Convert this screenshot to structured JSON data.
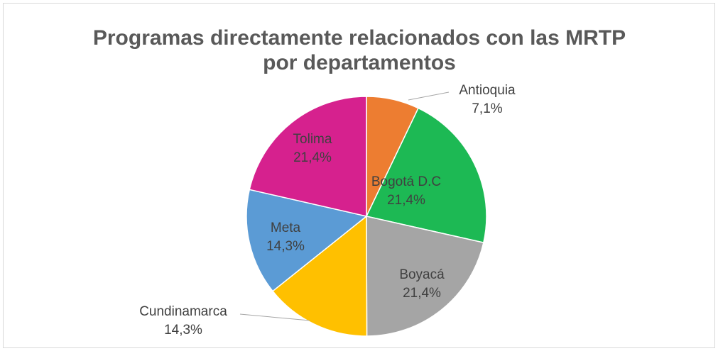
{
  "chart_data": {
    "type": "pie",
    "title": "Programas directamente relacionados con las MRTP por departamentos",
    "categories": [
      "Antioquia",
      "Bogotá D.C",
      "Boyacá",
      "Cundinamarca",
      "Meta",
      "Tolima"
    ],
    "values": [
      7.1,
      21.4,
      21.4,
      14.3,
      14.3,
      21.4
    ],
    "value_labels": [
      "7,1%",
      "21,4%",
      "21,4%",
      "14,3%",
      "14,3%",
      "21,4%"
    ],
    "colors": [
      "#ed7d31",
      "#1db954",
      "#a5a5a5",
      "#ffc000",
      "#5b9bd5",
      "#d6218e"
    ]
  }
}
